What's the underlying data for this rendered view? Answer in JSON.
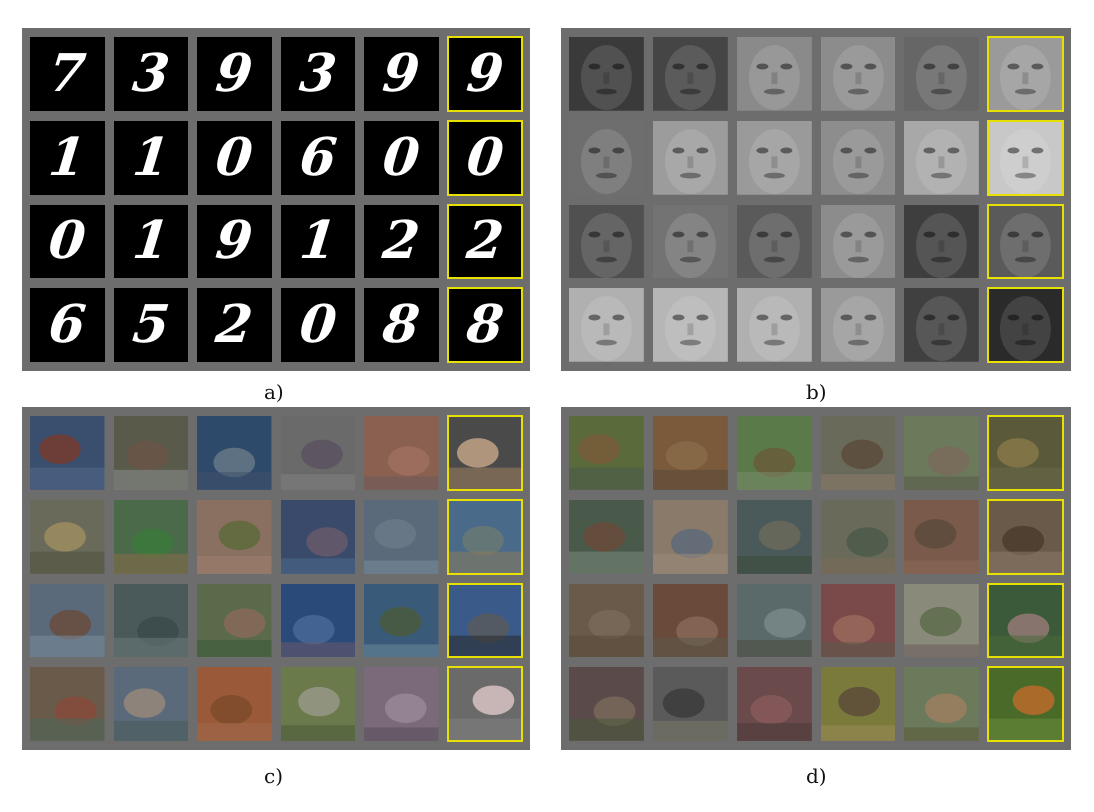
{
  "panels": [
    {
      "id": "a",
      "label": "a)",
      "type": "digits",
      "rows": [
        [
          "7",
          "3",
          "9",
          "3",
          "9",
          "9"
        ],
        [
          "1",
          "1",
          "0",
          "6",
          "0",
          "0"
        ],
        [
          "0",
          "1",
          "9",
          "1",
          "2",
          "2"
        ],
        [
          "6",
          "5",
          "2",
          "0",
          "8",
          "8"
        ]
      ]
    },
    {
      "id": "b",
      "label": "b)",
      "type": "faces",
      "rows": [
        [
          "#3a3a3a",
          "#454545",
          "#8a8a8a",
          "#8c8c8c",
          "#666666",
          "#9a9a9a"
        ],
        [
          "#6e6e6e",
          "#9c9c9c",
          "#9a9a9a",
          "#8d8d8d",
          "#a8a8a8",
          "#c8c8c8"
        ],
        [
          "#505050",
          "#737373",
          "#5a5a5a",
          "#8c8c8c",
          "#3e3e3e",
          "#5a5a5a"
        ],
        [
          "#b0b0b0",
          "#b6b6b6",
          "#b0b0b0",
          "#9a9a9a",
          "#404040",
          "#2a2a2a"
        ]
      ]
    },
    {
      "id": "c",
      "label": "c)",
      "type": "images",
      "rows": [
        [
          [
            "#3a4e6e",
            "#7a3a2a",
            "#546a8a"
          ],
          [
            "#5a5a4a",
            "#6a5446",
            "#8a9090"
          ],
          [
            "#2e4a6a",
            "#6a7a8a",
            "#40506a"
          ],
          [
            "#6a6a6a",
            "#5a5060",
            "#808080"
          ],
          [
            "#8a6050",
            "#a07060",
            "#6a5a5a"
          ],
          [
            "#4a4a4a",
            "#c8a888",
            "#a08060"
          ]
        ],
        [
          [
            "#6a6a5a",
            "#a09060",
            "#505040"
          ],
          [
            "#4a6a4a",
            "#3a7a3a",
            "#8a6a4a"
          ],
          [
            "#8a7060",
            "#5a6a3a",
            "#a08070"
          ],
          [
            "#3a4a6a",
            "#6a5a6a",
            "#4a6a8a"
          ],
          [
            "#5a6a7a",
            "#6a7a8a",
            "#7a8a9a"
          ],
          [
            "#4a6a8a",
            "#6a7a70",
            "#8a7a5a"
          ]
        ],
        [
          [
            "#5a6a7a",
            "#6a4a3a",
            "#7a8a9a"
          ],
          [
            "#4a5a5a",
            "#3a4a4a",
            "#6a7a7a"
          ],
          [
            "#5a6a4a",
            "#8a6a5a",
            "#3a5a3a"
          ],
          [
            "#2a4a7a",
            "#4a6a9a",
            "#6a5a6a"
          ],
          [
            "#3a5a7a",
            "#4a5a3a",
            "#6a8a9a"
          ],
          [
            "#3a5a8a",
            "#5a5a5a",
            "#2a2a2a"
          ]
        ],
        [
          [
            "#6a5a4a",
            "#8a4a3a",
            "#4a6a5a"
          ],
          [
            "#5a6a7a",
            "#9a8a7a",
            "#4a5a5a"
          ],
          [
            "#9a5a3a",
            "#7a4a2a",
            "#a06a4a"
          ],
          [
            "#6a7a4a",
            "#9a9a8a",
            "#4a5a3a"
          ],
          [
            "#7a6a7a",
            "#9a8a9a",
            "#5a4a5a"
          ],
          [
            "#6a6a6a",
            "#e0c8c8",
            "#808080"
          ]
        ]
      ]
    },
    {
      "id": "d",
      "label": "d)",
      "type": "images",
      "rows": [
        [
          [
            "#5a6a3a",
            "#7a5a3a",
            "#4a5a4a"
          ],
          [
            "#7a5a3a",
            "#8a6a4a",
            "#5a4a3a"
          ],
          [
            "#5a7a4a",
            "#6a5a3a",
            "#7a8a6a"
          ],
          [
            "#6a6a5a",
            "#5a4a3a",
            "#8a7a6a"
          ],
          [
            "#6a7a5a",
            "#7a6a5a",
            "#5a5a4a"
          ],
          [
            "#5a5a3a",
            "#8a7a4a",
            "#6a6a4a"
          ]
        ],
        [
          [
            "#4a5a4a",
            "#6a4a3a",
            "#7a8a7a"
          ],
          [
            "#8a7a6a",
            "#5a6a7a",
            "#9a8a7a"
          ],
          [
            "#4a5a5a",
            "#6a6a5a",
            "#3a4a3a"
          ],
          [
            "#6a6a5a",
            "#4a5a4a",
            "#7a6a5a"
          ],
          [
            "#7a5a4a",
            "#5a4a3a",
            "#8a6a5a"
          ],
          [
            "#6a5a4a",
            "#4a3a2a",
            "#8a7a6a"
          ]
        ],
        [
          [
            "#6a5a4a",
            "#7a6a5a",
            "#5a4a3a"
          ],
          [
            "#6a4a3a",
            "#8a6a5a",
            "#5a5a4a"
          ],
          [
            "#5a6a6a",
            "#7a8a8a",
            "#4a4a3a"
          ],
          [
            "#7a4a4a",
            "#9a6a5a",
            "#5a5a4a"
          ],
          [
            "#8a8a7a",
            "#5a6a4a",
            "#6a5a5a"
          ],
          [
            "#3a5a3a",
            "#9a7a7a",
            "#4a6a3a"
          ]
        ],
        [
          [
            "#5a4a4a",
            "#7a6a5a",
            "#4a5a3a"
          ],
          [
            "#5a5a5a",
            "#3a3a3a",
            "#7a7a6a"
          ],
          [
            "#6a4a4a",
            "#8a5a5a",
            "#4a3a3a"
          ],
          [
            "#7a7a3a",
            "#5a4a3a",
            "#9a8a5a"
          ],
          [
            "#6a7a5a",
            "#a08060",
            "#5a5a3a"
          ],
          [
            "#4a6a2a",
            "#c06a2a",
            "#6a8a3a"
          ]
        ]
      ]
    }
  ]
}
